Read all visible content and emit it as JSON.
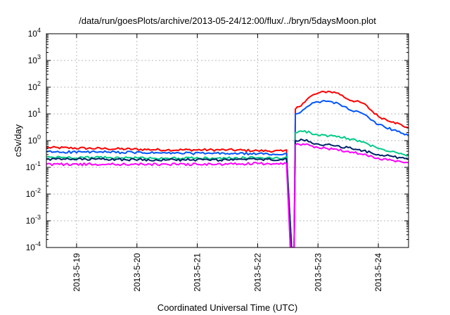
{
  "chart_data": {
    "type": "line",
    "title": "/data/run/goesPlots/archive/2013-05-24/12:00/flux/../bryn/5daysMoon.plot",
    "xlabel": "Coordinated Universal Time (UTC)",
    "ylabel": "cSv/day",
    "y_scale": "log",
    "xlim": [
      "2013-05-18T12:00",
      "2013-05-24T12:00"
    ],
    "ylim": [
      0.0001,
      10000
    ],
    "x_tick_labels": [
      "2013-5-19",
      "2013-5-20",
      "2013-5-21",
      "2013-5-22",
      "2013-5-23",
      "2013-5-24"
    ],
    "y_tick_labels": [
      {
        "base": "10",
        "exp": "-4"
      },
      {
        "base": "10",
        "exp": "-3"
      },
      {
        "base": "10",
        "exp": "-2"
      },
      {
        "base": "10",
        "exp": "-1"
      },
      {
        "base": "10",
        "exp": "0"
      },
      {
        "base": "10",
        "exp": "1"
      },
      {
        "base": "10",
        "exp": "2"
      },
      {
        "base": "10",
        "exp": "3"
      },
      {
        "base": "10",
        "exp": "4"
      }
    ],
    "grid": true,
    "legend": "none",
    "series": [
      {
        "color": "#ff0000",
        "points": [
          [
            "2013-05-18T12:00",
            0.55
          ],
          [
            "2013-05-19T12:00",
            0.5
          ],
          [
            "2013-05-20T12:00",
            0.45
          ],
          [
            "2013-05-21T12:00",
            0.45
          ],
          [
            "2013-05-22T00:00",
            0.42
          ],
          [
            "2013-05-22T10:00",
            0.4
          ],
          [
            "2013-05-22T11:30",
            0.45
          ],
          [
            "2013-05-22T13:00",
            0.0001
          ],
          [
            "2013-05-22T14:30",
            0.0001
          ],
          [
            "2013-05-22T15:00",
            15
          ],
          [
            "2013-05-22T18:00",
            25
          ],
          [
            "2013-05-22T21:00",
            45
          ],
          [
            "2013-05-23T00:00",
            60
          ],
          [
            "2013-05-23T04:00",
            70
          ],
          [
            "2013-05-23T08:00",
            60
          ],
          [
            "2013-05-23T12:00",
            35
          ],
          [
            "2013-05-23T18:00",
            25
          ],
          [
            "2013-05-24T00:00",
            8
          ],
          [
            "2013-05-24T06:00",
            5
          ],
          [
            "2013-05-24T12:00",
            3
          ]
        ]
      },
      {
        "color": "#0055ff",
        "points": [
          [
            "2013-05-18T12:00",
            0.38
          ],
          [
            "2013-05-19T12:00",
            0.37
          ],
          [
            "2013-05-20T12:00",
            0.34
          ],
          [
            "2013-05-21T12:00",
            0.33
          ],
          [
            "2013-05-22T00:00",
            0.32
          ],
          [
            "2013-05-22T10:00",
            0.3
          ],
          [
            "2013-05-22T11:30",
            0.33
          ],
          [
            "2013-05-22T13:30",
            0.0001
          ],
          [
            "2013-05-22T14:30",
            0.0001
          ],
          [
            "2013-05-22T15:00",
            10
          ],
          [
            "2013-05-22T18:00",
            14
          ],
          [
            "2013-05-22T21:00",
            22
          ],
          [
            "2013-05-23T00:00",
            28
          ],
          [
            "2013-05-23T04:00",
            30
          ],
          [
            "2013-05-23T08:00",
            25
          ],
          [
            "2013-05-23T12:00",
            15
          ],
          [
            "2013-05-23T18:00",
            10
          ],
          [
            "2013-05-24T00:00",
            4
          ],
          [
            "2013-05-24T06:00",
            2.5
          ],
          [
            "2013-05-24T12:00",
            1.5
          ]
        ]
      },
      {
        "color": "#00cc88",
        "points": [
          [
            "2013-05-18T12:00",
            0.24
          ],
          [
            "2013-05-19T12:00",
            0.23
          ],
          [
            "2013-05-20T12:00",
            0.22
          ],
          [
            "2013-05-21T12:00",
            0.22
          ],
          [
            "2013-05-22T00:00",
            0.23
          ],
          [
            "2013-05-22T10:00",
            0.22
          ],
          [
            "2013-05-22T11:30",
            0.25
          ],
          [
            "2013-05-22T13:30",
            0.0001
          ],
          [
            "2013-05-22T14:30",
            0.0001
          ],
          [
            "2013-05-22T15:00",
            2
          ],
          [
            "2013-05-22T18:00",
            2.2
          ],
          [
            "2013-05-22T21:00",
            2
          ],
          [
            "2013-05-23T00:00",
            1.6
          ],
          [
            "2013-05-23T06:00",
            1.5
          ],
          [
            "2013-05-23T12:00",
            1.2
          ],
          [
            "2013-05-23T18:00",
            0.9
          ],
          [
            "2013-05-24T00:00",
            0.5
          ],
          [
            "2013-05-24T06:00",
            0.4
          ],
          [
            "2013-05-24T12:00",
            0.28
          ]
        ]
      },
      {
        "color": "#002266",
        "points": [
          [
            "2013-05-18T12:00",
            0.2
          ],
          [
            "2013-05-19T12:00",
            0.2
          ],
          [
            "2013-05-20T12:00",
            0.19
          ],
          [
            "2013-05-21T12:00",
            0.19
          ],
          [
            "2013-05-22T00:00",
            0.2
          ],
          [
            "2013-05-22T10:00",
            0.19
          ],
          [
            "2013-05-22T11:30",
            0.21
          ],
          [
            "2013-05-22T13:30",
            0.0001
          ],
          [
            "2013-05-22T14:30",
            0.0001
          ],
          [
            "2013-05-22T15:00",
            1
          ],
          [
            "2013-05-22T18:00",
            1.05
          ],
          [
            "2013-05-22T21:00",
            0.9
          ],
          [
            "2013-05-23T00:00",
            0.75
          ],
          [
            "2013-05-23T06:00",
            0.65
          ],
          [
            "2013-05-23T12:00",
            0.55
          ],
          [
            "2013-05-23T18:00",
            0.42
          ],
          [
            "2013-05-24T00:00",
            0.3
          ],
          [
            "2013-05-24T06:00",
            0.25
          ],
          [
            "2013-05-24T12:00",
            0.2
          ]
        ]
      },
      {
        "color": "#ff00ff",
        "points": [
          [
            "2013-05-18T12:00",
            0.13
          ],
          [
            "2013-05-19T12:00",
            0.13
          ],
          [
            "2013-05-20T12:00",
            0.13
          ],
          [
            "2013-05-21T12:00",
            0.13
          ],
          [
            "2013-05-22T00:00",
            0.14
          ],
          [
            "2013-05-22T10:00",
            0.13
          ],
          [
            "2013-05-22T11:30",
            0.14
          ],
          [
            "2013-05-22T13:00",
            0.0001
          ],
          [
            "2013-05-22T14:30",
            0.0001
          ],
          [
            "2013-05-22T15:00",
            0.7
          ],
          [
            "2013-05-22T18:00",
            0.75
          ],
          [
            "2013-05-22T21:00",
            0.65
          ],
          [
            "2013-05-23T00:00",
            0.55
          ],
          [
            "2013-05-23T06:00",
            0.48
          ],
          [
            "2013-05-23T12:00",
            0.4
          ],
          [
            "2013-05-23T18:00",
            0.3
          ],
          [
            "2013-05-24T00:00",
            0.22
          ],
          [
            "2013-05-24T06:00",
            0.18
          ],
          [
            "2013-05-24T12:00",
            0.15
          ]
        ]
      }
    ]
  }
}
